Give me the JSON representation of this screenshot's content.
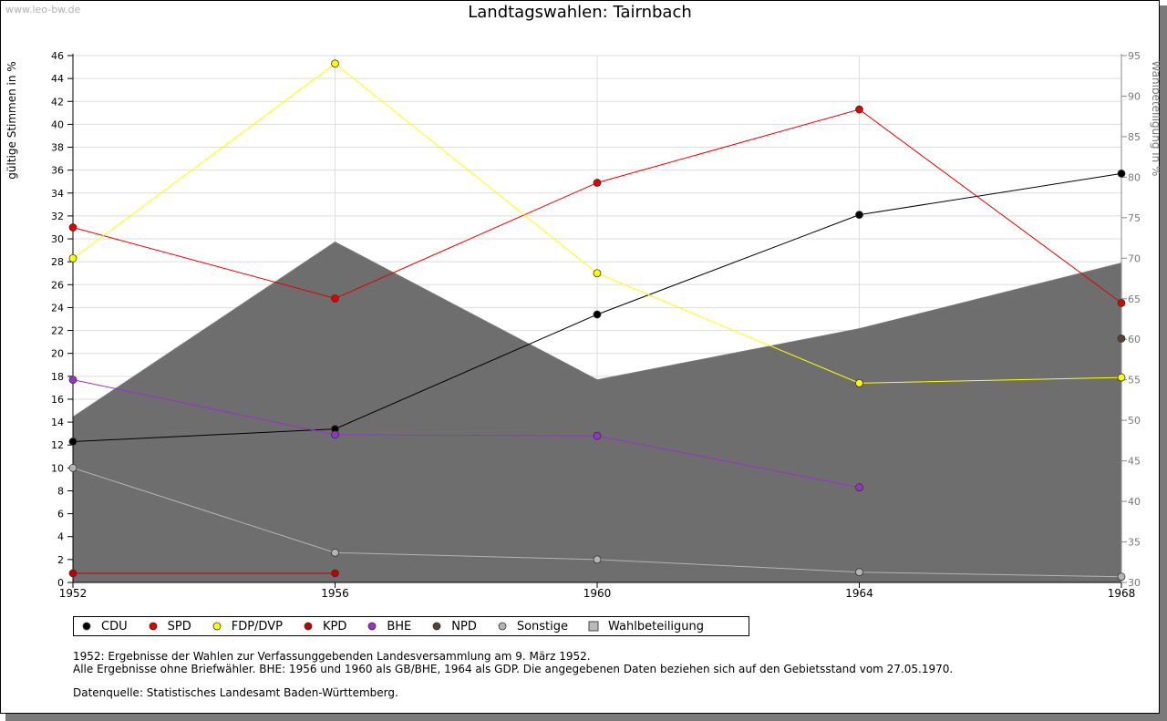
{
  "watermark": "www.leo-bw.de",
  "chart_data": {
    "type": "line",
    "title": "Landtagswahlen: Tairnbach",
    "xlabel": "",
    "ylabel": "gültige Stimmen in %",
    "y2label": "Wahlbeteiligung in %",
    "x": [
      1952,
      1956,
      1960,
      1964,
      1968
    ],
    "x_ticks": [
      "1952",
      "1956",
      "1960",
      "1964",
      "1968"
    ],
    "ylim": [
      0,
      46
    ],
    "y_ticks": [
      "0",
      "2",
      "4",
      "6",
      "8",
      "10",
      "12",
      "14",
      "16",
      "18",
      "20",
      "22",
      "24",
      "26",
      "28",
      "30",
      "32",
      "34",
      "36",
      "38",
      "40",
      "42",
      "44",
      "46"
    ],
    "y2lim": [
      30,
      95
    ],
    "y2_ticks": [
      "30",
      "35",
      "40",
      "45",
      "50",
      "55",
      "60",
      "65",
      "70",
      "75",
      "80",
      "85",
      "90",
      "95"
    ],
    "grid": true,
    "legend_position": "bottom-left",
    "series": [
      {
        "name": "CDU",
        "color": "#000000",
        "values": [
          12.3,
          13.4,
          23.4,
          32.1,
          35.7
        ]
      },
      {
        "name": "SPD",
        "color": "#e00000",
        "values": [
          31.0,
          24.8,
          34.9,
          41.3,
          24.4
        ]
      },
      {
        "name": "FDP/DVP",
        "color": "#ffff00",
        "values": [
          28.3,
          45.3,
          27.0,
          17.4,
          17.9
        ]
      },
      {
        "name": "KPD",
        "color": "#c00000",
        "values": [
          0.8,
          0.8,
          null,
          null,
          null
        ]
      },
      {
        "name": "BHE",
        "color": "#9a30d0",
        "values": [
          17.7,
          12.9,
          12.8,
          8.3,
          null
        ]
      },
      {
        "name": "NPD",
        "color": "#5a4030",
        "values": [
          null,
          null,
          null,
          null,
          21.3
        ]
      },
      {
        "name": "Sonstige",
        "color": "#b4b4b4",
        "values": [
          10.0,
          2.6,
          2.0,
          0.9,
          0.5
        ]
      }
    ],
    "turnout": {
      "name": "Wahlbeteiligung",
      "axis": "right",
      "type": "area",
      "values": [
        50.4,
        72.0,
        55.0,
        61.3,
        69.4
      ]
    }
  },
  "notes": {
    "line1": "1952: Ergebnisse der Wahlen zur Verfassunggebenden Landesversammlung am 9. März 1952.",
    "line2": "Alle Ergebnisse ohne Briefwähler. BHE: 1956 und 1960 als GB/BHE, 1964 als GDP. Die angegebenen Daten beziehen sich auf den Gebietsstand vom 27.05.1970.",
    "line3": "Datenquelle: Statistisches Landesamt Baden-Württemberg."
  }
}
